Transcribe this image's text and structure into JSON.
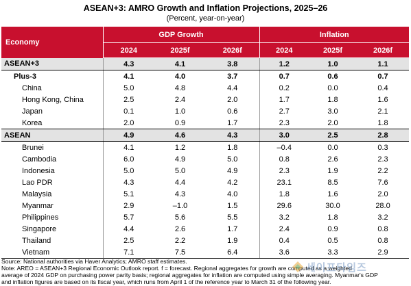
{
  "title": "ASEAN+3: AMRO Growth and Inflation Projections, 2025–26",
  "subtitle": "(Percent, year-on-year)",
  "header": {
    "economy": "Economy",
    "gdp_group": "GDP Growth",
    "inflation_group": "Inflation",
    "years": [
      "2024",
      "2025f",
      "2026f",
      "2024",
      "2025f",
      "2026f"
    ]
  },
  "rows": [
    {
      "name": "ASEAN+3",
      "values": [
        "4.3",
        "4.1",
        "3.8",
        "1.2",
        "1.0",
        "1.1"
      ]
    },
    {
      "name": "Plus-3",
      "values": [
        "4.1",
        "4.0",
        "3.7",
        "0.7",
        "0.6",
        "0.7"
      ]
    },
    {
      "name": "China",
      "values": [
        "5.0",
        "4.8",
        "4.4",
        "0.2",
        "0.0",
        "0.4"
      ]
    },
    {
      "name": "Hong Kong, China",
      "values": [
        "2.5",
        "2.4",
        "2.0",
        "1.7",
        "1.8",
        "1.6"
      ]
    },
    {
      "name": "Japan",
      "values": [
        "0.1",
        "1.0",
        "0.6",
        "2.7",
        "3.0",
        "2.1"
      ]
    },
    {
      "name": "Korea",
      "values": [
        "2.0",
        "0.9",
        "1.7",
        "2.3",
        "2.0",
        "1.8"
      ]
    },
    {
      "name": "ASEAN",
      "values": [
        "4.9",
        "4.6",
        "4.3",
        "3.0",
        "2.5",
        "2.8"
      ]
    },
    {
      "name": "Brunei",
      "values": [
        "4.1",
        "1.2",
        "1.8",
        "–0.4",
        "0.0",
        "0.3"
      ]
    },
    {
      "name": "Cambodia",
      "values": [
        "6.0",
        "4.9",
        "5.0",
        "0.8",
        "2.6",
        "2.3"
      ]
    },
    {
      "name": "Indonesia",
      "values": [
        "5.0",
        "5.0",
        "4.9",
        "2.3",
        "1.9",
        "2.2"
      ]
    },
    {
      "name": "Lao PDR",
      "values": [
        "4.3",
        "4.4",
        "4.2",
        "23.1",
        "8.5",
        "7.6"
      ]
    },
    {
      "name": "Malaysia",
      "values": [
        "5.1",
        "4.3",
        "4.0",
        "1.8",
        "1.6",
        "2.0"
      ]
    },
    {
      "name": "Myanmar",
      "values": [
        "2.9",
        "–1.0",
        "1.5",
        "29.6",
        "30.0",
        "28.0"
      ]
    },
    {
      "name": "Philippines",
      "values": [
        "5.7",
        "5.6",
        "5.5",
        "3.2",
        "1.8",
        "3.2"
      ]
    },
    {
      "name": "Singapore",
      "values": [
        "4.4",
        "2.6",
        "1.7",
        "2.4",
        "0.9",
        "0.8"
      ]
    },
    {
      "name": "Thailand",
      "values": [
        "2.5",
        "2.2",
        "1.9",
        "0.4",
        "0.5",
        "0.8"
      ]
    },
    {
      "name": "Vietnam",
      "values": [
        "7.1",
        "7.5",
        "6.4",
        "3.6",
        "3.3",
        "2.9"
      ]
    }
  ],
  "footnotes": {
    "source": "Source: National authorities via Haver Analytics; AMRO staff estimates.",
    "note1": "Note: AREO = ASEAN+3 Regional Economic Outlook report. f = forecast. Regional aggregates for growth are computed as a weighted",
    "note2": "average of 2024 GDP on purchasing power parity basis; regional aggregates for inflation are computed using simple averaging. Myanmar's GDP",
    "note3": "and inflation figures are based on its fiscal year, which runs from April 1 of the reference year to March 31 of the following year."
  },
  "watermark": {
    "text": "세이프타임즈",
    "color": "#7a9bc4",
    "icon": "safetimes-logo-icon"
  }
}
